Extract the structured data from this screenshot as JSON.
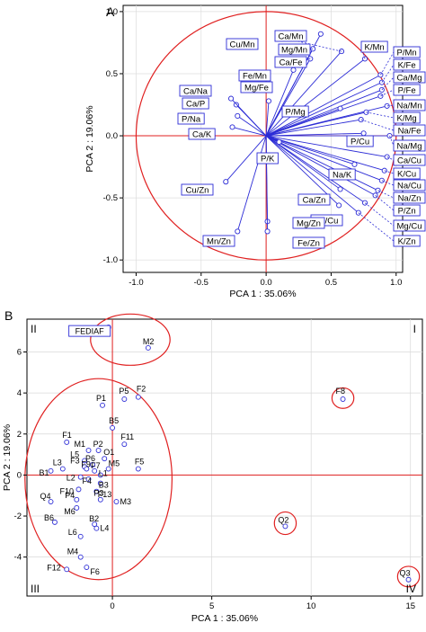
{
  "chart_data": [
    {
      "panel_label": "A",
      "type": "scatter",
      "subtype": "pca-loadings-correlation-circle",
      "xlabel": "PCA 1 : 35.06%",
      "ylabel": "PCA 2 : 19.06%",
      "xlim": [
        -1.1,
        1.05
      ],
      "ylim": [
        -1.1,
        1.05
      ],
      "xticks": [
        "-1.0",
        "-0.5",
        "0.0",
        "0.5",
        "1.0"
      ],
      "yticks": [
        "1.0",
        "0.5",
        "0.0",
        "-0.5",
        "-1.0"
      ],
      "colors": {
        "vectors": "#2c2cd6",
        "circle": "#e02020",
        "axes": "#e02020",
        "labels_border": "#2c2cd6"
      },
      "points": [
        {
          "name": "Cu/Mn",
          "x": 0.42,
          "y": 0.82
        },
        {
          "name": "Ca/Mn",
          "x": 0.58,
          "y": 0.68
        },
        {
          "name": "Mg/Mn",
          "x": 0.36,
          "y": 0.7
        },
        {
          "name": "Ca/Fe",
          "x": 0.34,
          "y": 0.62
        },
        {
          "name": "Fe/Mn",
          "x": 0.21,
          "y": 0.53
        },
        {
          "name": "K/Mn",
          "x": 0.76,
          "y": 0.62
        },
        {
          "name": "P/Mn",
          "x": 0.88,
          "y": 0.49
        },
        {
          "name": "K/Fe",
          "x": 0.89,
          "y": 0.43
        },
        {
          "name": "Ca/Mg",
          "x": 0.89,
          "y": 0.37
        },
        {
          "name": "P/Fe",
          "x": 0.88,
          "y": 0.32
        },
        {
          "name": "Na/Mn",
          "x": 0.93,
          "y": 0.24
        },
        {
          "name": "K/Mg",
          "x": 0.77,
          "y": 0.19
        },
        {
          "name": "Na/Fe",
          "x": 0.73,
          "y": 0.13
        },
        {
          "name": "P/Mg",
          "x": 0.57,
          "y": 0.22
        },
        {
          "name": "P/Cu",
          "x": 0.75,
          "y": 0.02
        },
        {
          "name": "Na/Mg",
          "x": 0.95,
          "y": 0.0
        },
        {
          "name": "Ca/Cu",
          "x": 0.93,
          "y": -0.17
        },
        {
          "name": "K/Cu",
          "x": 0.91,
          "y": -0.28
        },
        {
          "name": "Na/Cu",
          "x": 0.89,
          "y": -0.36
        },
        {
          "name": "Na/Zn",
          "x": 0.86,
          "y": -0.44
        },
        {
          "name": "P/Zn",
          "x": 0.84,
          "y": -0.48
        },
        {
          "name": "Mg/Cu",
          "x": 0.76,
          "y": -0.54
        },
        {
          "name": "K/Zn",
          "x": 0.71,
          "y": -0.62
        },
        {
          "name": "Na/K",
          "x": 0.68,
          "y": -0.23
        },
        {
          "name": "Ca/Zn",
          "x": 0.57,
          "y": -0.43
        },
        {
          "name": "Fe/Cu",
          "x": 0.56,
          "y": -0.56
        },
        {
          "name": "P/K",
          "x": 0.1,
          "y": -0.05
        },
        {
          "name": "Mg/Zn",
          "x": 0.01,
          "y": -0.69
        },
        {
          "name": "Fe/Zn",
          "x": 0.01,
          "y": -0.77
        },
        {
          "name": "Mn/Zn",
          "x": -0.22,
          "y": -0.77
        },
        {
          "name": "Cu/Zn",
          "x": -0.31,
          "y": -0.37
        },
        {
          "name": "Ca/K",
          "x": -0.26,
          "y": 0.07
        },
        {
          "name": "P/Na",
          "x": -0.22,
          "y": 0.16
        },
        {
          "name": "Ca/P",
          "x": -0.23,
          "y": 0.25
        },
        {
          "name": "Ca/Na",
          "x": -0.27,
          "y": 0.3
        },
        {
          "name": "Mg/Fe",
          "x": 0.02,
          "y": 0.28
        }
      ]
    },
    {
      "panel_label": "B",
      "type": "scatter",
      "subtype": "pca-score-plot",
      "xlabel": "PCA 1 : 35.06%",
      "ylabel": "PCA 2 : 19.06%",
      "xlim": [
        -4.3,
        15.6
      ],
      "ylim": [
        -5.9,
        7.6
      ],
      "xticks": [
        0,
        5,
        10,
        15
      ],
      "yticks": [
        6,
        4,
        2,
        0,
        -2,
        -4
      ],
      "quadrants": [
        "I",
        "II",
        "III",
        "IV"
      ],
      "colors": {
        "points": "#2c2cd6",
        "ellipses": "#e02020",
        "axes": "#e02020",
        "grid": "#d8d8d8"
      },
      "points": [
        {
          "name": "FEDIAF",
          "x": -0.2,
          "y": 7.2
        },
        {
          "name": "M2",
          "x": 1.8,
          "y": 6.2
        },
        {
          "name": "P1",
          "x": -0.5,
          "y": 3.4
        },
        {
          "name": "P5",
          "x": 0.6,
          "y": 3.7
        },
        {
          "name": "F2",
          "x": 1.3,
          "y": 3.8
        },
        {
          "name": "B5",
          "x": 0.0,
          "y": 2.3
        },
        {
          "name": "F1",
          "x": -2.3,
          "y": 1.6
        },
        {
          "name": "F11",
          "x": 0.6,
          "y": 1.5
        },
        {
          "name": "M1",
          "x": -1.2,
          "y": 1.2
        },
        {
          "name": "P2",
          "x": -0.7,
          "y": 1.2
        },
        {
          "name": "L5",
          "x": -1.4,
          "y": 0.7
        },
        {
          "name": "O1",
          "x": -0.4,
          "y": 0.8
        },
        {
          "name": "F3",
          "x": -1.4,
          "y": 0.4
        },
        {
          "name": "P6",
          "x": -1.0,
          "y": 0.5
        },
        {
          "name": "M5",
          "x": -0.2,
          "y": 0.3
        },
        {
          "name": "F5",
          "x": 1.3,
          "y": 0.3
        },
        {
          "name": "L3",
          "x": -2.5,
          "y": 0.3
        },
        {
          "name": "B1",
          "x": -3.1,
          "y": 0.2
        },
        {
          "name": "F9",
          "x": -1.3,
          "y": 0.3
        },
        {
          "name": "F7",
          "x": -0.9,
          "y": 0.2
        },
        {
          "name": "L2",
          "x": -1.6,
          "y": -0.1
        },
        {
          "name": "F4",
          "x": -1.2,
          "y": -0.2
        },
        {
          "name": "L1",
          "x": -0.6,
          "y": 0.0
        },
        {
          "name": "B3",
          "x": -0.6,
          "y": -0.4
        },
        {
          "name": "F10",
          "x": -1.7,
          "y": -0.7
        },
        {
          "name": "P3",
          "x": -0.8,
          "y": -0.8
        },
        {
          "name": "P4",
          "x": -1.8,
          "y": -1.2
        },
        {
          "name": "F13",
          "x": -0.6,
          "y": -1.2
        },
        {
          "name": "Q4",
          "x": -3.1,
          "y": -1.3
        },
        {
          "name": "M6",
          "x": -1.8,
          "y": -1.6
        },
        {
          "name": "M3",
          "x": 0.2,
          "y": -1.3
        },
        {
          "name": "B6",
          "x": -2.9,
          "y": -2.3
        },
        {
          "name": "B2",
          "x": -0.9,
          "y": -2.4
        },
        {
          "name": "L4",
          "x": -0.8,
          "y": -2.6
        },
        {
          "name": "L6",
          "x": -1.6,
          "y": -3.0
        },
        {
          "name": "M4",
          "x": -1.6,
          "y": -4.0
        },
        {
          "name": "F12",
          "x": -2.3,
          "y": -4.6
        },
        {
          "name": "F6",
          "x": -1.3,
          "y": -4.5
        },
        {
          "name": "F8",
          "x": 11.6,
          "y": 3.7
        },
        {
          "name": "Q2",
          "x": 8.7,
          "y": -2.5
        },
        {
          "name": "Q3",
          "x": 14.9,
          "y": -5.1
        }
      ]
    }
  ]
}
